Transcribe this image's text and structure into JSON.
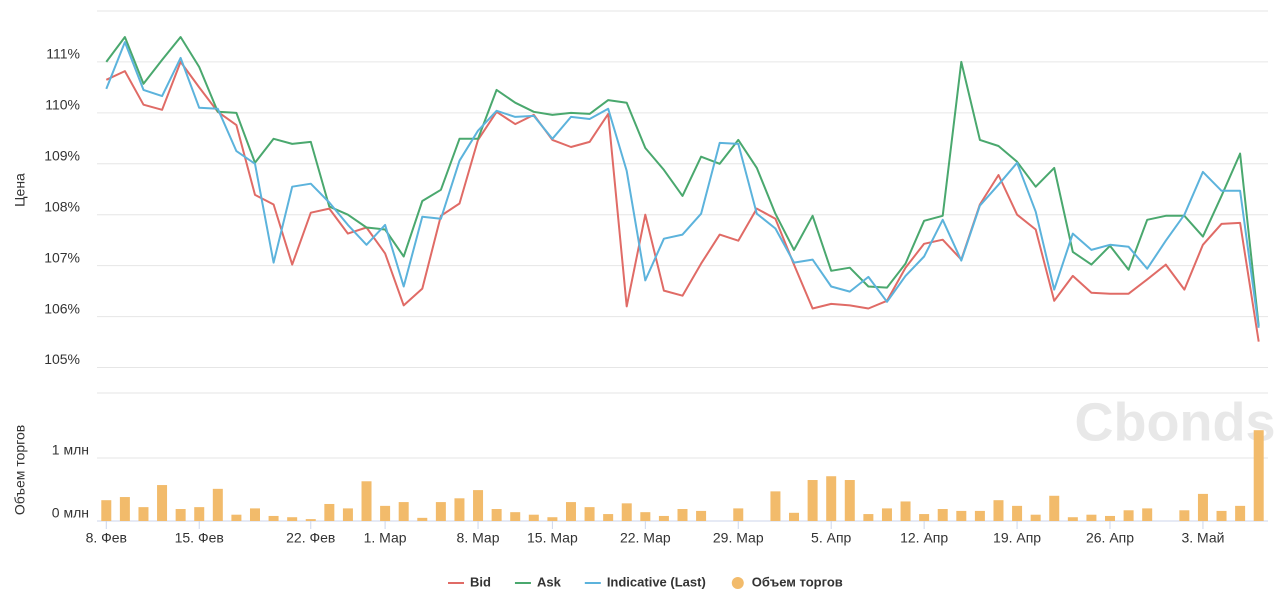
{
  "chart_data": {
    "type": "line",
    "ylabel": "Цена",
    "y2label": "Объем торгов",
    "watermark": "Cbonds",
    "grid": true,
    "legend": "bottom",
    "xlim": [
      -0.5,
      62.5
    ],
    "x": [
      0,
      1,
      2,
      3,
      4,
      5,
      6,
      7,
      8,
      9,
      10,
      11,
      12,
      13,
      14,
      15,
      16,
      17,
      18,
      19,
      20,
      21,
      22,
      23,
      24,
      25,
      26,
      27,
      28,
      29,
      30,
      31,
      32,
      33,
      34,
      35,
      36,
      37,
      38,
      39,
      40,
      41,
      42,
      43,
      44,
      45,
      46,
      47,
      48,
      49,
      50,
      51,
      52,
      53,
      54,
      55,
      56,
      57,
      58,
      59,
      60,
      61,
      62
    ],
    "xticks": [
      {
        "value": 0,
        "label": "8. Фев"
      },
      {
        "value": 5,
        "label": "15. Фев"
      },
      {
        "value": 11,
        "label": "22. Фев"
      },
      {
        "value": 15,
        "label": "1. Мар"
      },
      {
        "value": 20,
        "label": "8. Мар"
      },
      {
        "value": 24,
        "label": "15. Мар"
      },
      {
        "value": 29,
        "label": "22. Мар"
      },
      {
        "value": 34,
        "label": "29. Мар"
      },
      {
        "value": 39,
        "label": "5. Апр"
      },
      {
        "value": 44,
        "label": "12. Апр"
      },
      {
        "value": 49,
        "label": "19. Апр"
      },
      {
        "value": 54,
        "label": "26. Апр"
      },
      {
        "value": 59,
        "label": "3. Май"
      }
    ],
    "ylim": [
      104.5,
      112
    ],
    "yticks": [
      {
        "value": 105,
        "label": "105%"
      },
      {
        "value": 106,
        "label": "106%"
      },
      {
        "value": 107,
        "label": "107%"
      },
      {
        "value": 108,
        "label": "108%"
      },
      {
        "value": 109,
        "label": "109%"
      },
      {
        "value": 110,
        "label": "110%"
      },
      {
        "value": 111,
        "label": "111%"
      }
    ],
    "y2lim": [
      0,
      2.03
    ],
    "y2ticks": [
      {
        "value": 0,
        "label": "0 млн"
      },
      {
        "value": 1,
        "label": "1 млн"
      }
    ],
    "series": [
      {
        "name": "Bid",
        "color": "#e06b66",
        "values": [
          110.65,
          110.82,
          110.16,
          110.06,
          111.0,
          110.5,
          110.02,
          109.76,
          108.39,
          108.2,
          107.02,
          108.04,
          108.12,
          107.63,
          107.75,
          107.24,
          106.22,
          106.55,
          107.98,
          108.22,
          109.47,
          110.02,
          109.78,
          109.96,
          109.47,
          109.33,
          109.43,
          109.98,
          106.2,
          108.0,
          106.51,
          106.41,
          107.04,
          107.61,
          107.49,
          108.12,
          107.92,
          107.02,
          106.16,
          106.25,
          106.22,
          106.16,
          106.31,
          106.96,
          107.43,
          107.51,
          107.12,
          108.2,
          108.78,
          108.0,
          107.71,
          106.31,
          106.8,
          106.47,
          106.45,
          106.45,
          106.73,
          107.02,
          106.53,
          107.41,
          107.82,
          107.84,
          105.51
        ]
      },
      {
        "name": "Ask",
        "color": "#4aa86e",
        "values": [
          111.0,
          111.49,
          110.57,
          111.04,
          111.49,
          110.9,
          110.02,
          110.0,
          109.02,
          109.49,
          109.39,
          109.43,
          108.16,
          108.0,
          107.75,
          107.71,
          107.18,
          108.27,
          108.49,
          109.49,
          109.49,
          110.45,
          110.2,
          110.02,
          109.96,
          110.0,
          109.98,
          110.25,
          110.2,
          109.31,
          108.88,
          108.37,
          109.14,
          109.0,
          109.47,
          108.92,
          108.02,
          107.31,
          107.98,
          106.9,
          106.96,
          106.59,
          106.57,
          107.04,
          107.88,
          107.98,
          111.0,
          109.47,
          109.35,
          109.04,
          108.55,
          108.92,
          107.27,
          107.02,
          107.39,
          106.92,
          107.9,
          107.98,
          107.98,
          107.57,
          108.37,
          109.2,
          105.82
        ]
      },
      {
        "name": "Indicative (Last)",
        "color": "#5cb3dc",
        "values": [
          110.47,
          111.39,
          110.45,
          110.33,
          111.08,
          110.1,
          110.08,
          109.25,
          109.0,
          107.06,
          108.55,
          108.61,
          108.24,
          107.8,
          107.41,
          107.8,
          106.59,
          107.96,
          107.92,
          109.06,
          109.65,
          110.04,
          109.92,
          109.94,
          109.49,
          109.92,
          109.88,
          110.08,
          108.86,
          106.71,
          107.53,
          107.61,
          108.02,
          109.41,
          109.39,
          108.02,
          107.73,
          107.06,
          107.12,
          106.59,
          106.49,
          106.78,
          106.29,
          106.8,
          107.18,
          107.9,
          107.1,
          108.18,
          108.59,
          109.02,
          108.06,
          106.53,
          107.63,
          107.31,
          107.41,
          107.37,
          106.94,
          107.49,
          108.0,
          108.84,
          108.47,
          108.47,
          105.78
        ]
      },
      {
        "name": "Объем торгов",
        "color": "#f2bb6b",
        "type": "bar",
        "axis": "y2",
        "values": [
          0.33,
          0.38,
          0.22,
          0.57,
          0.19,
          0.22,
          0.51,
          0.1,
          0.2,
          0.08,
          0.06,
          0.03,
          0.27,
          0.2,
          0.63,
          0.24,
          0.3,
          0.05,
          0.3,
          0.36,
          0.49,
          0.19,
          0.14,
          0.1,
          0.06,
          0.3,
          0.22,
          0.11,
          0.28,
          0.14,
          0.08,
          0.19,
          0.16,
          null,
          0.2,
          null,
          0.47,
          0.13,
          0.65,
          0.71,
          0.65,
          0.11,
          0.2,
          0.31,
          0.11,
          0.19,
          0.16,
          0.16,
          0.33,
          0.24,
          0.1,
          0.4,
          0.06,
          0.1,
          0.08,
          0.17,
          0.2,
          null,
          0.17,
          0.43,
          0.16,
          0.24,
          1.44
        ]
      }
    ]
  }
}
